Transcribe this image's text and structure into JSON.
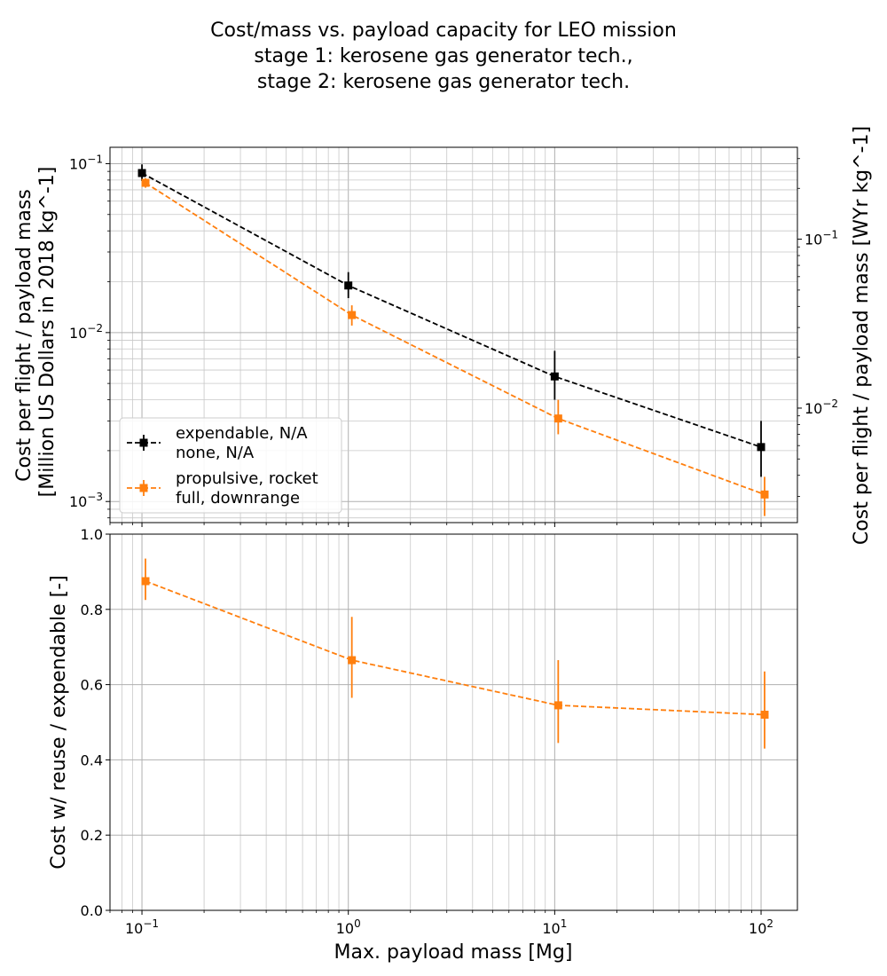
{
  "chart_data": [
    {
      "type": "line",
      "panel": "top",
      "title_lines": [
        "Cost/mass vs. payload capacity for LEO mission",
        "stage 1: kerosene gas generator tech.,",
        "stage 2: kerosene gas generator tech."
      ],
      "xscale": "log",
      "yscale": "log",
      "xlim": [
        0.07,
        150
      ],
      "ylim": [
        0.00075,
        0.125
      ],
      "ylabel_lines": [
        "Cost per flight / payload mass",
        "[Million US Dollars in 2018 kg^-1]"
      ],
      "y2label": "Cost per flight / payload mass [WYr kg^-1]",
      "y2scale": "log",
      "y2lim": [
        0.0021,
        0.35
      ],
      "y2ticks": [
        "10^-2",
        "10^-1"
      ],
      "yticks": [
        "10^-3",
        "10^-2",
        "10^-1"
      ],
      "grid": true,
      "legend_position": "lower-left",
      "series": [
        {
          "name_lines": [
            "expendable, N/A",
            "none, N/A"
          ],
          "color": "#000000",
          "style": "dashed",
          "marker": "square",
          "x": [
            0.1,
            1,
            10,
            100
          ],
          "y": [
            0.088,
            0.019,
            0.0055,
            0.0021
          ],
          "yerr_low": [
            0.079,
            0.016,
            0.004,
            0.0014
          ],
          "yerr_high": [
            0.099,
            0.0228,
            0.0078,
            0.003
          ]
        },
        {
          "name_lines": [
            "propulsive, rocket",
            "full, downrange"
          ],
          "color": "#ff7f0e",
          "style": "dashed",
          "marker": "square",
          "x": [
            0.104,
            1.04,
            10.4,
            104
          ],
          "y": [
            0.077,
            0.0127,
            0.0031,
            0.0011
          ],
          "yerr_low": [
            0.072,
            0.011,
            0.0025,
            0.00082
          ],
          "yerr_high": [
            0.082,
            0.0145,
            0.004,
            0.0014
          ]
        }
      ]
    },
    {
      "type": "line",
      "panel": "bottom",
      "xscale": "log",
      "xlim": [
        0.07,
        150
      ],
      "ylim": [
        0.0,
        1.0
      ],
      "yticks": [
        "0.0",
        "0.2",
        "0.4",
        "0.6",
        "0.8",
        "1.0"
      ],
      "xticks": [
        "10^-1",
        "10^0",
        "10^1",
        "10^2"
      ],
      "xlabel": "Max. payload mass [Mg]",
      "ylabel": "Cost w/ reuse / expendable [-]",
      "grid": true,
      "series": [
        {
          "color": "#ff7f0e",
          "style": "dashed",
          "marker": "square",
          "x": [
            0.104,
            1.04,
            10.4,
            104
          ],
          "y": [
            0.875,
            0.665,
            0.545,
            0.52
          ],
          "yerr_low": [
            0.825,
            0.565,
            0.445,
            0.43
          ],
          "yerr_high": [
            0.935,
            0.78,
            0.665,
            0.635
          ]
        }
      ]
    }
  ]
}
